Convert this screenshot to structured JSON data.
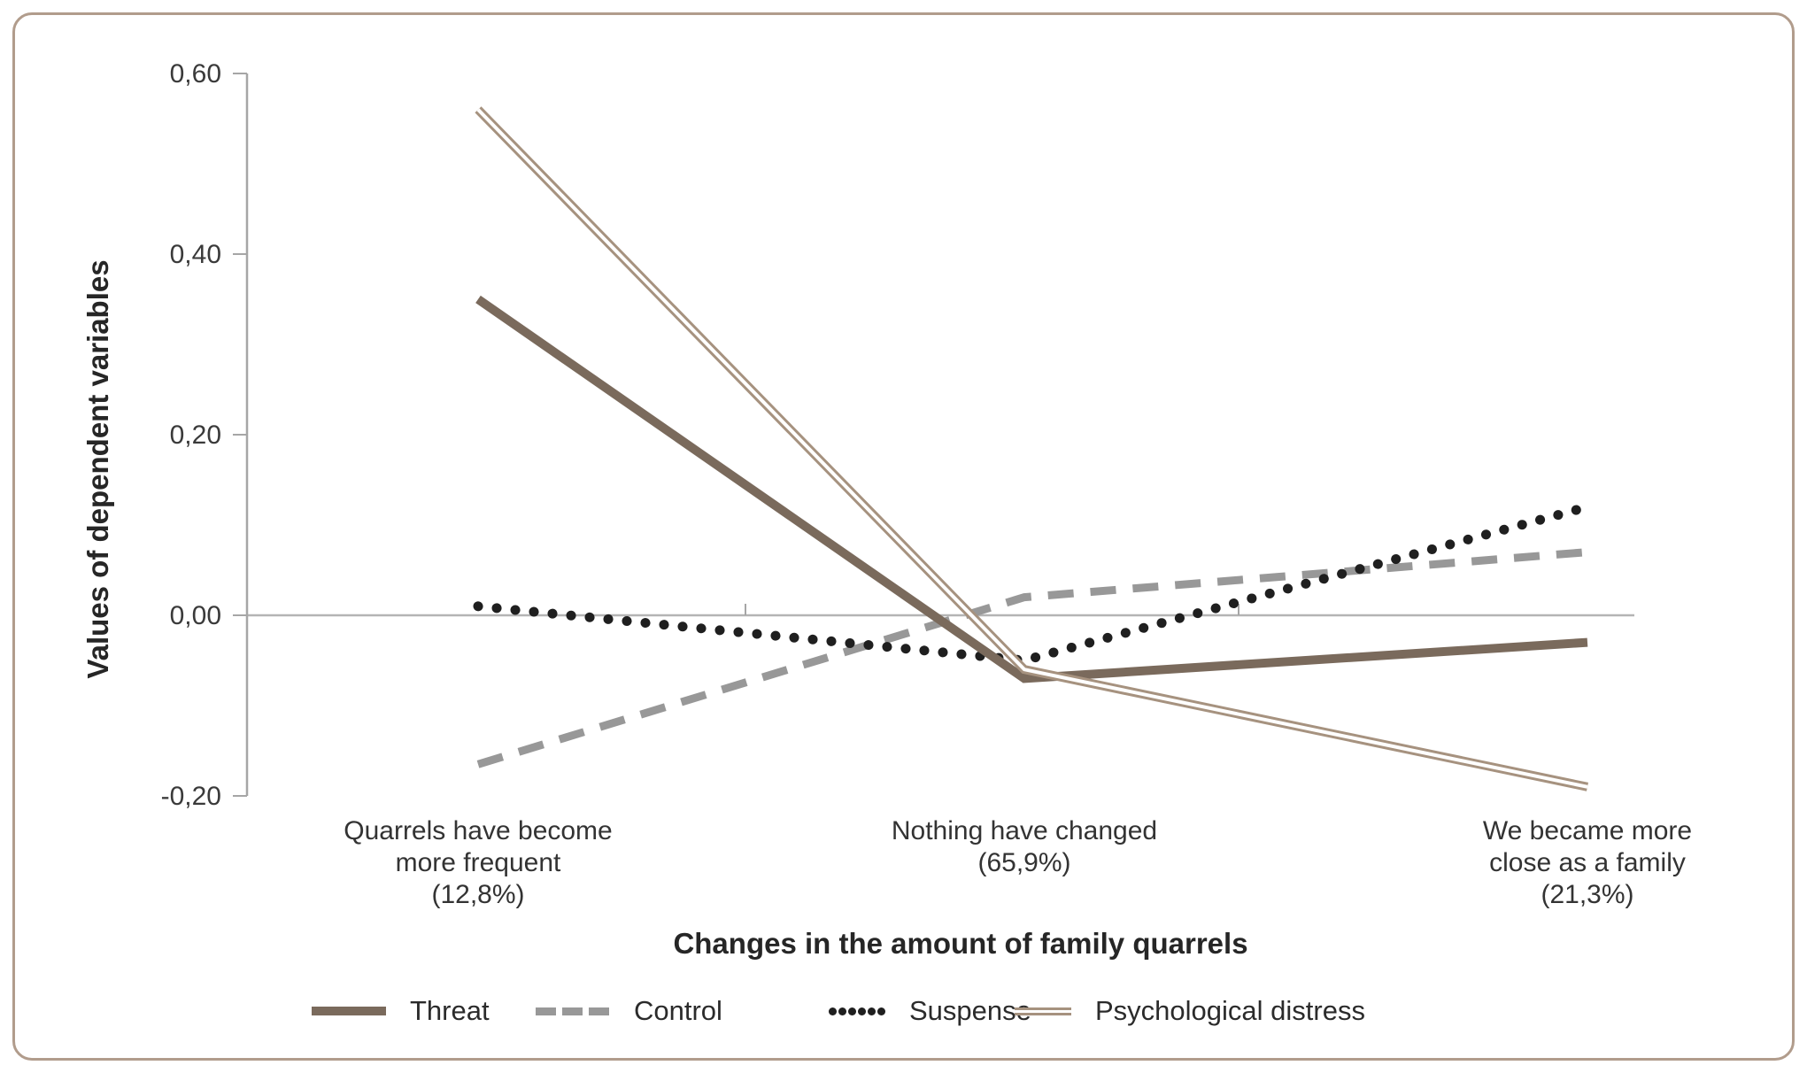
{
  "figure": {
    "frame_border_color": "#b19c8c",
    "background_color": "#ffffff",
    "axis_color": "#a6a6a6",
    "zero_line_color": "#b4b4b4",
    "text_color": "#262626"
  },
  "chart_data": {
    "type": "line",
    "title": "",
    "xlabel": "Changes in the amount of family quarrels",
    "ylabel": "Values of dependent variables",
    "decimal_separator": ",",
    "grid": "zero-line-only",
    "legend_position": "bottom",
    "categories": [
      {
        "label": "Quarrels have become more frequent",
        "share": "12,8%",
        "lines": [
          "Quarrels have become",
          "more frequent",
          "(12,8%)"
        ]
      },
      {
        "label": "Nothing have changed",
        "share": "65,9%",
        "lines": [
          "Nothing have changed",
          "(65,9%)"
        ]
      },
      {
        "label": "We became more close as a family",
        "share": "21,3%",
        "lines": [
          "We became more",
          "close as a family",
          "(21,3%)"
        ]
      }
    ],
    "y_axis": {
      "min": -0.2,
      "max": 0.6,
      "tick_step": 0.2,
      "ticks": [
        {
          "value": 0.6,
          "label": "0,60"
        },
        {
          "value": 0.4,
          "label": "0,40"
        },
        {
          "value": 0.2,
          "label": "0,20"
        },
        {
          "value": 0.0,
          "label": "0,00"
        },
        {
          "value": -0.2,
          "label": "-0,20"
        }
      ]
    },
    "series": [
      {
        "name": "Threat",
        "style": "solid",
        "color": "#7a6a5c",
        "values": [
          0.35,
          -0.07,
          -0.03
        ]
      },
      {
        "name": "Control",
        "style": "dashed",
        "color": "#989898",
        "values": [
          -0.165,
          0.02,
          0.07
        ]
      },
      {
        "name": "Suspense",
        "style": "dotted",
        "color": "#1f1f1f",
        "values": [
          0.01,
          -0.05,
          0.12
        ]
      },
      {
        "name": "Psychological distress",
        "style": "double",
        "color": "#a6927f",
        "values": [
          0.56,
          -0.06,
          -0.19
        ]
      }
    ]
  }
}
